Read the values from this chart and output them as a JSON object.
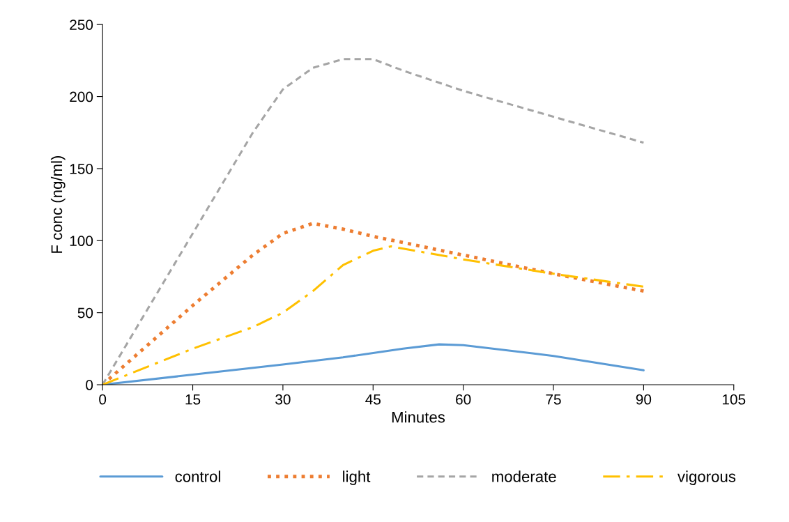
{
  "chart_data": {
    "type": "line",
    "xlabel": "Minutes",
    "ylabel": "F conc (ng/ml)",
    "xlim": [
      0,
      105
    ],
    "xticks": [
      0,
      15,
      30,
      45,
      60,
      75,
      90,
      105
    ],
    "ylim": [
      0,
      250
    ],
    "yticks": [
      0,
      50,
      100,
      150,
      200,
      250
    ],
    "grid": false,
    "legend": "bottom",
    "marker": "none",
    "series": [
      {
        "name": "control",
        "color": "#5b9bd5",
        "line_style": "solid",
        "x": [
          0,
          15,
          30,
          40,
          50,
          56,
          60,
          75,
          90
        ],
        "values": [
          0,
          7,
          14,
          19,
          25,
          28,
          27.5,
          20,
          10
        ]
      },
      {
        "name": "light",
        "color": "#ed7d31",
        "line_style": "dotted",
        "x": [
          0,
          15,
          25,
          30,
          35,
          40,
          45,
          60,
          75,
          90
        ],
        "values": [
          0,
          55,
          90,
          105,
          112,
          108,
          103,
          90,
          77,
          65
        ]
      },
      {
        "name": "moderate",
        "color": "#a5a5a5",
        "line_style": "dashed",
        "x": [
          0,
          15,
          25,
          30,
          35,
          40,
          45,
          50,
          60,
          75,
          90
        ],
        "values": [
          0,
          105,
          175,
          205,
          220,
          226,
          226,
          218,
          204,
          186,
          168
        ]
      },
      {
        "name": "vigorous",
        "color": "#ffc000",
        "line_style": "dashdot",
        "x": [
          0,
          15,
          25,
          30,
          35,
          40,
          45,
          48,
          60,
          75,
          90
        ],
        "values": [
          0,
          25,
          40,
          50,
          65,
          83,
          93,
          96,
          87,
          77,
          68
        ]
      }
    ]
  }
}
